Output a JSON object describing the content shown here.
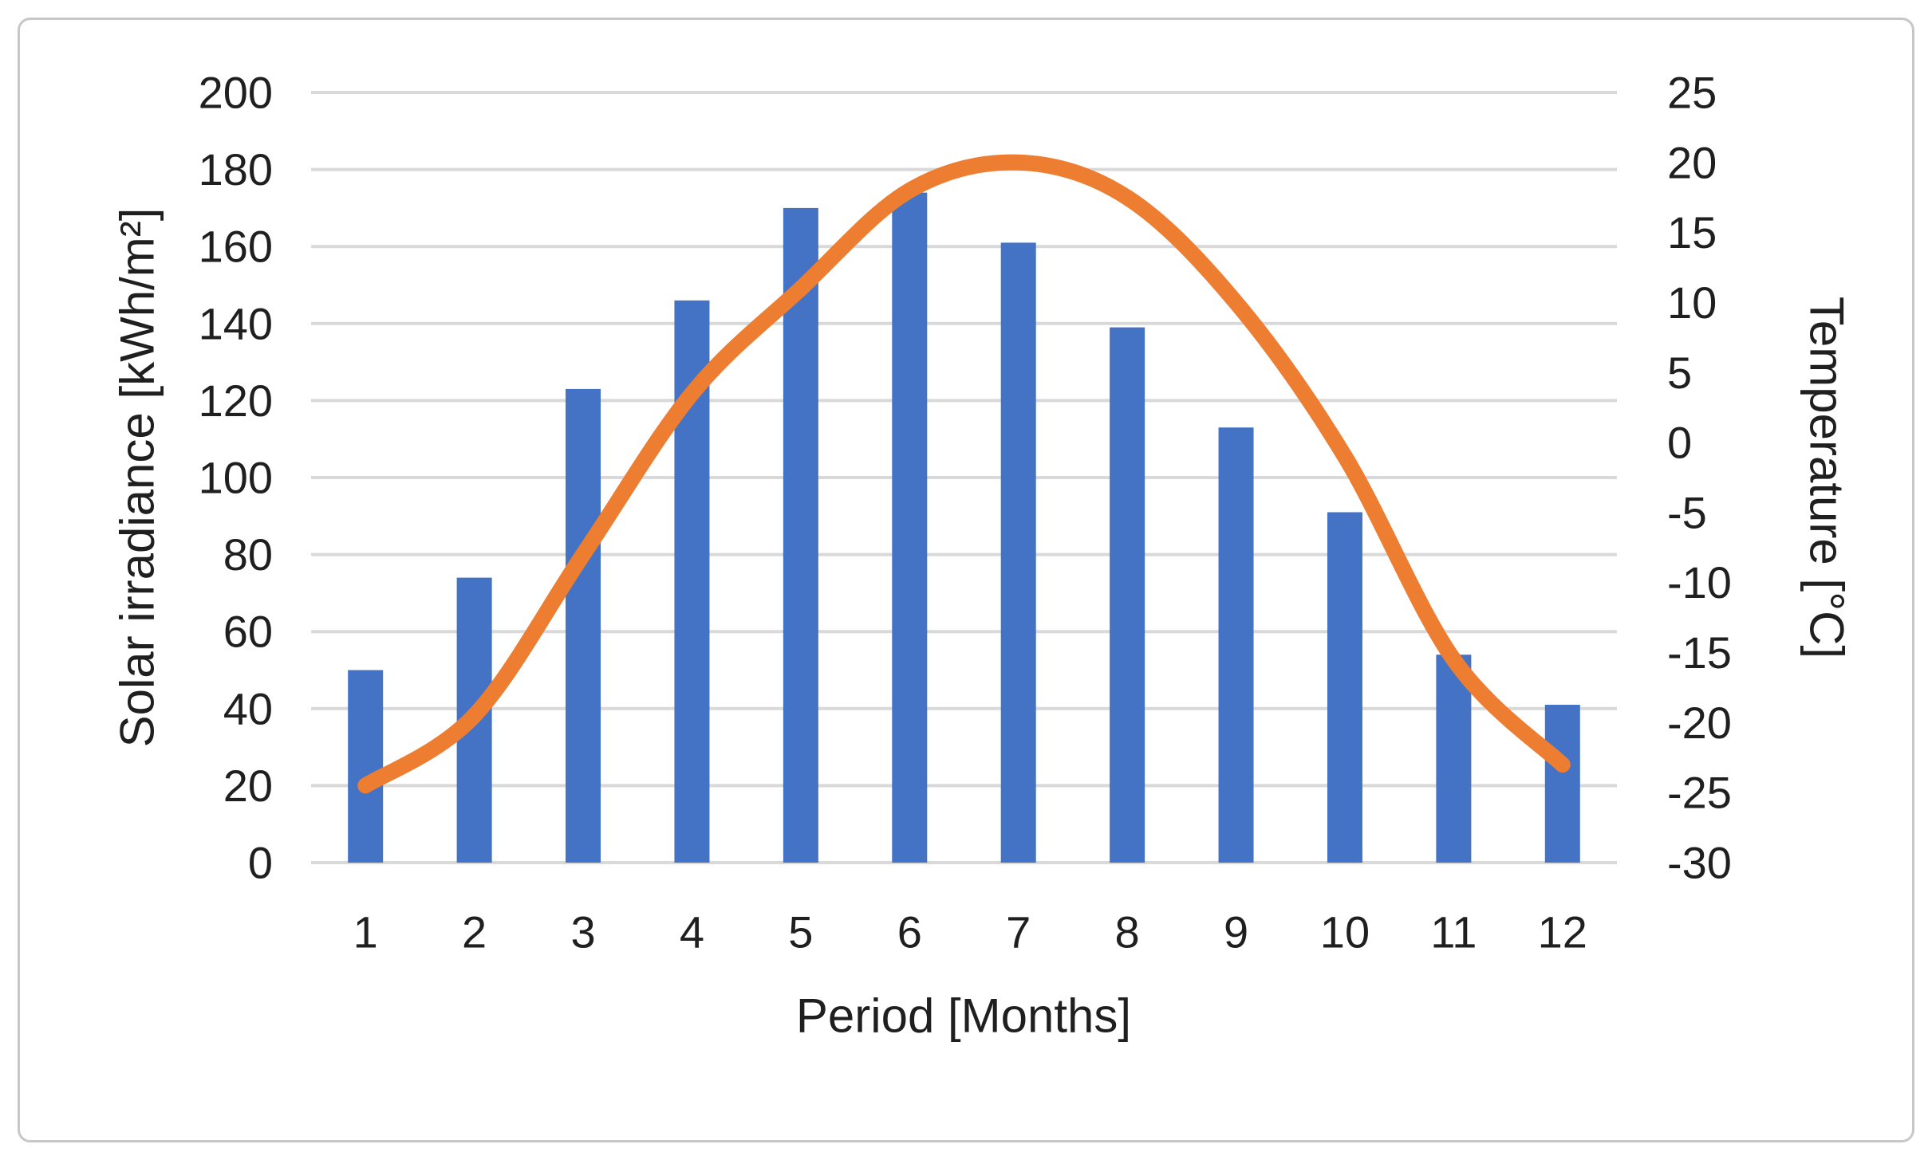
{
  "chart_data": {
    "type": "combo-bar-line",
    "categories": [
      "1",
      "2",
      "3",
      "4",
      "5",
      "6",
      "7",
      "8",
      "9",
      "10",
      "11",
      "12"
    ],
    "series": [
      {
        "name": "Solar irradiance",
        "chart": "bar",
        "axis": "primary",
        "color": "#4472C4",
        "values": [
          50,
          74,
          123,
          146,
          170,
          174,
          161,
          139,
          113,
          91,
          54,
          41
        ]
      },
      {
        "name": "Temperature",
        "chart": "line",
        "axis": "secondary",
        "color": "#ED7D31",
        "values": [
          -24.5,
          -19.5,
          -8,
          3.5,
          11,
          18,
          20,
          17.5,
          10,
          -1,
          -15.5,
          -23
        ]
      }
    ],
    "primary_axis": {
      "title": "Solar irradiance [kWh/m²]",
      "min": 0,
      "max": 200,
      "step": 20,
      "tick_labels": [
        "200",
        "180",
        "160",
        "140",
        "120",
        "100",
        "80",
        "60",
        "40",
        "20",
        "0"
      ]
    },
    "secondary_axis": {
      "title": "Temperature [°C]",
      "min": -30,
      "max": 25,
      "step": 5,
      "tick_labels": [
        "25",
        "20",
        "15",
        "10",
        "5",
        "0",
        "-5",
        "-10",
        "-15",
        "-20",
        "-25",
        "-30"
      ]
    },
    "x_axis": {
      "title": "Period [Months]"
    },
    "grid": true,
    "legend": "none"
  },
  "style": {
    "grid_color": "#D9D9D9",
    "text_color": "#1F1F1F",
    "border_color": "#C7C7C7",
    "background": "#FFFFFF",
    "bar_color": "#4472C4",
    "line_color": "#ED7D31"
  }
}
